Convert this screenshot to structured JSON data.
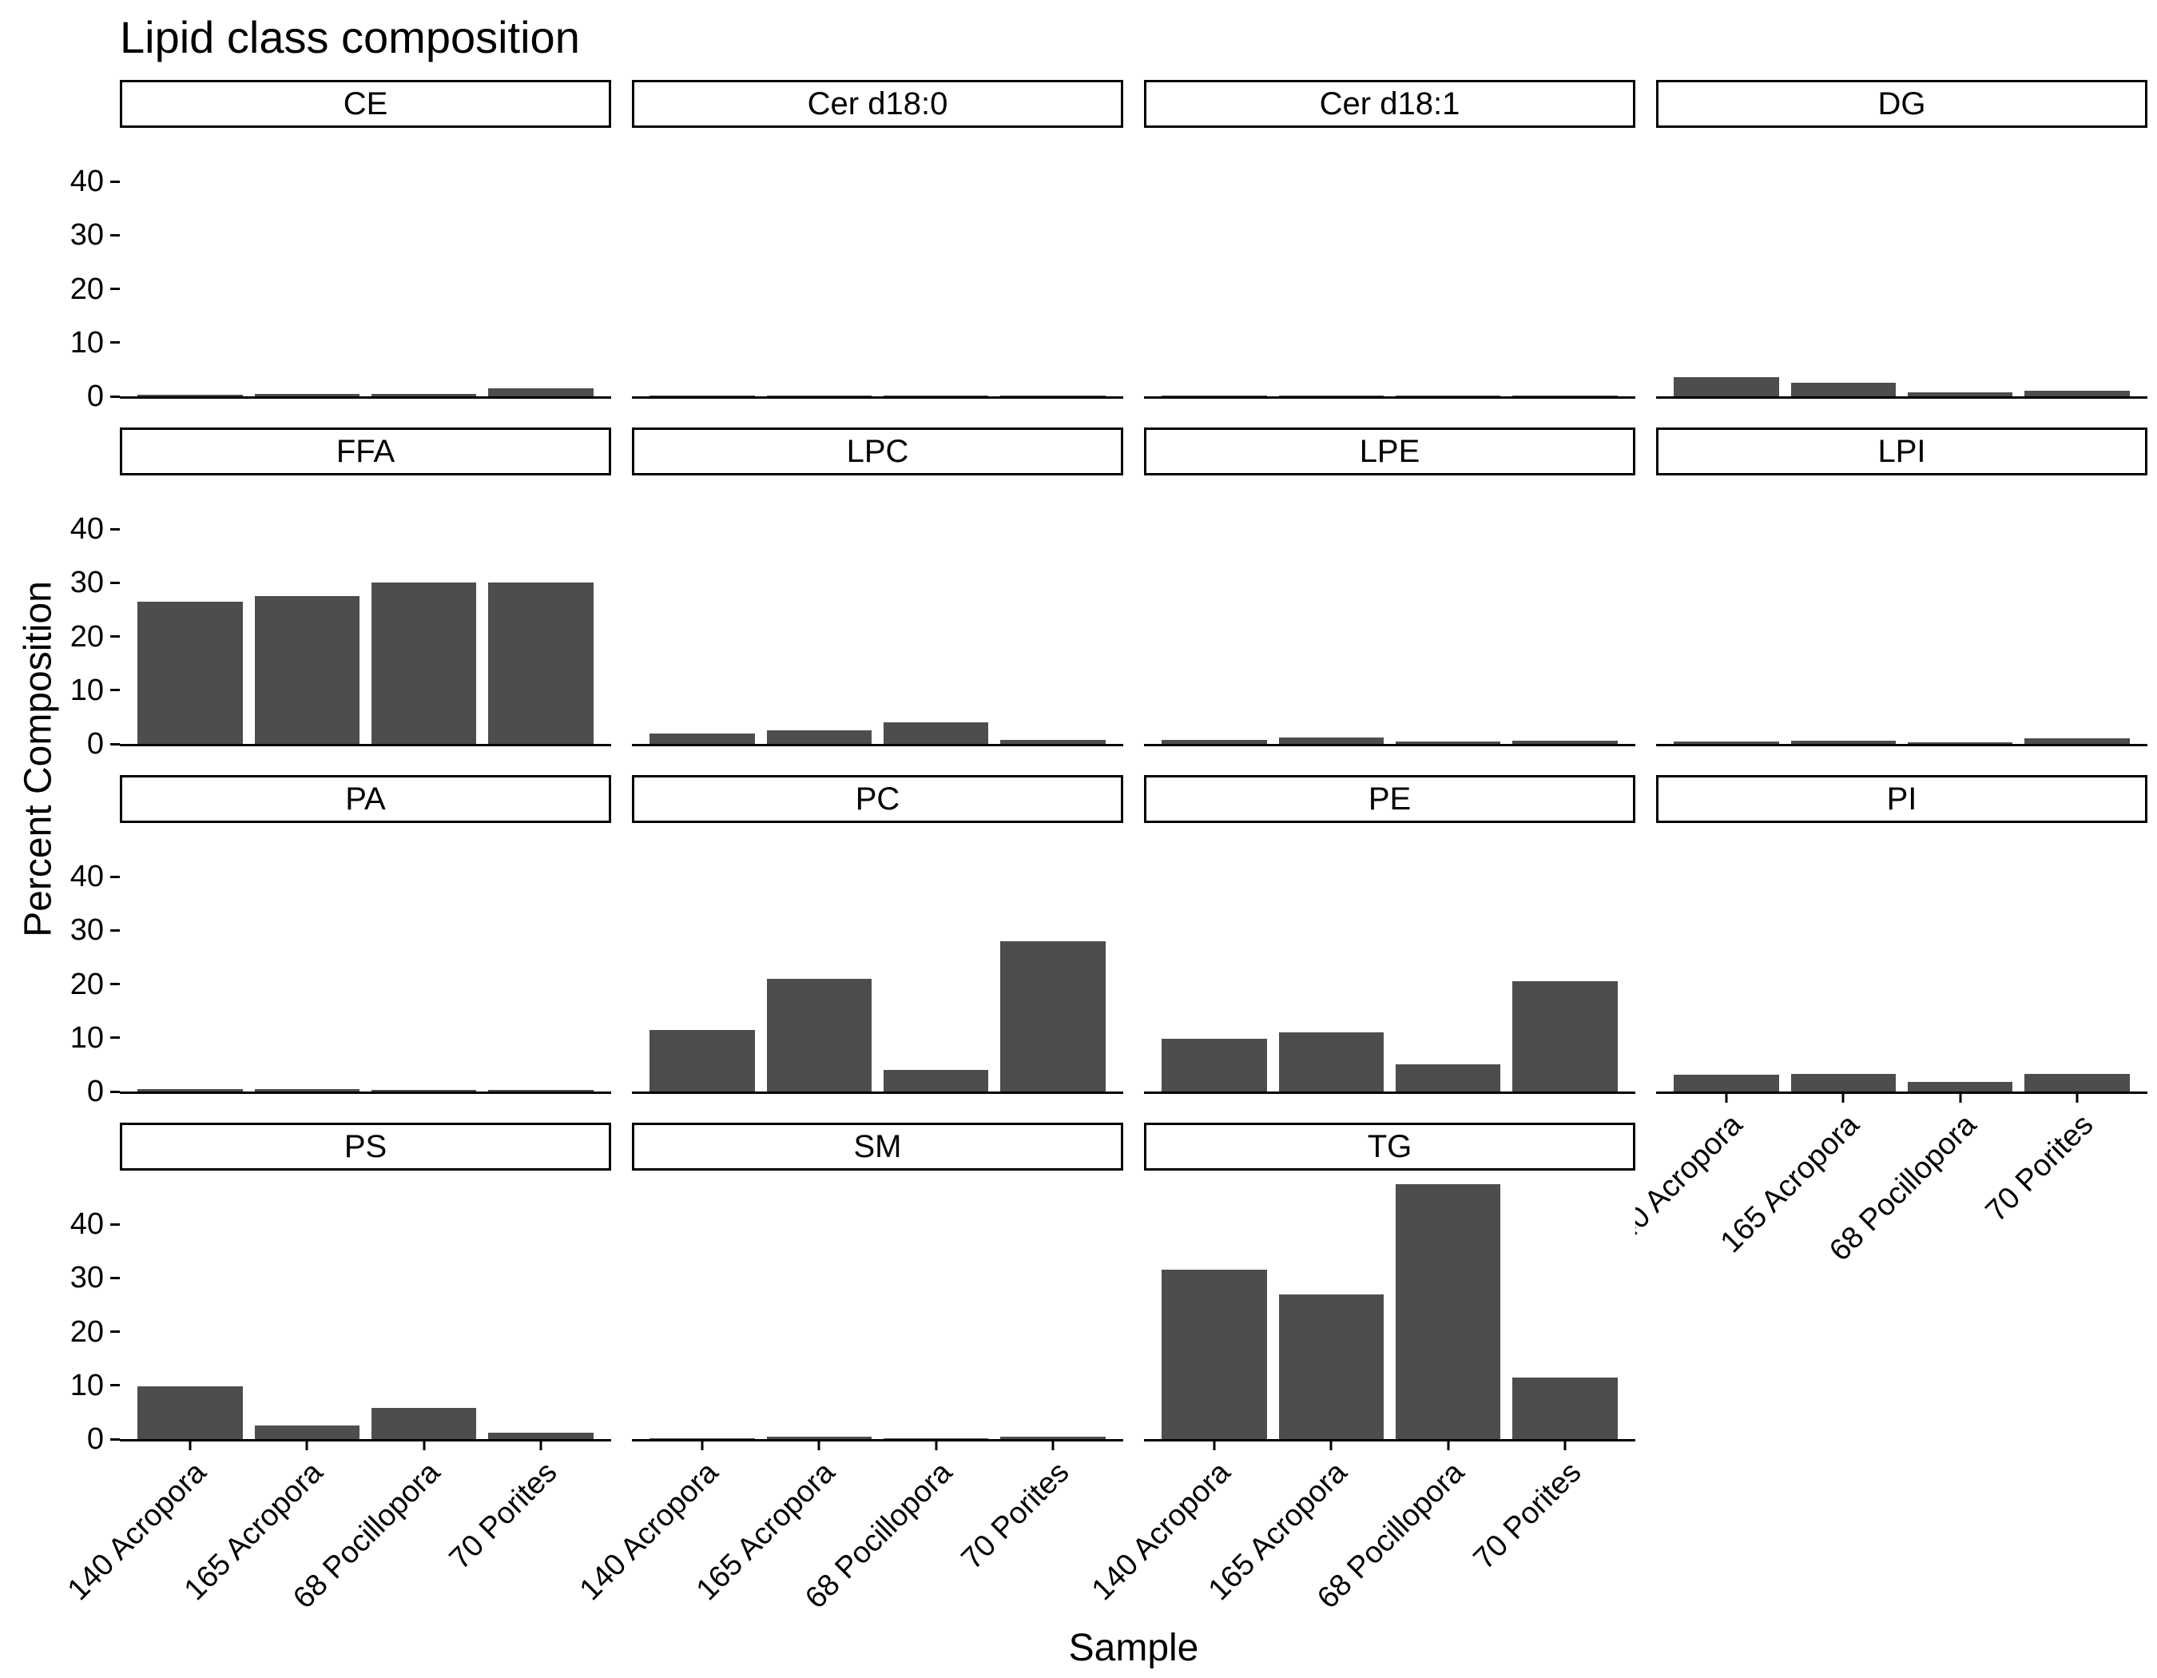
{
  "title": "Lipid class composition",
  "axes": {
    "y_label": "Percent Composition",
    "x_label": "Sample"
  },
  "colors": {
    "bar": "#4d4d4d",
    "axis": "#000000",
    "strip_border": "#000000",
    "text": "#000000",
    "background": "#ffffff"
  },
  "chart_data": {
    "type": "bar",
    "faceted": true,
    "facet_layout": {
      "nrows": 4,
      "ncols": 4,
      "empty_cells": [
        "row4-col4"
      ]
    },
    "title": "Lipid class composition",
    "xlabel": "Sample",
    "ylabel": "Percent Composition",
    "ylim": [
      0,
      50
    ],
    "yticks": [
      0,
      10,
      20,
      30,
      40
    ],
    "grid": false,
    "legend": "none",
    "bar_color": "#4d4d4d",
    "categories": [
      "140 Acropora",
      "165 Acropora",
      "68 Pocillopora",
      "70 Porites"
    ],
    "facets": [
      {
        "name": "CE",
        "values": [
          0.3,
          0.5,
          0.4,
          1.5
        ]
      },
      {
        "name": "Cer d18:0",
        "values": [
          0.1,
          0.15,
          0.1,
          0.15
        ]
      },
      {
        "name": "Cer d18:1",
        "values": [
          0.1,
          0.2,
          0.1,
          0.15
        ]
      },
      {
        "name": "DG",
        "values": [
          3.5,
          2.5,
          0.8,
          1.0
        ]
      },
      {
        "name": "FFA",
        "values": [
          26.5,
          27.5,
          30.0,
          30.0
        ]
      },
      {
        "name": "LPC",
        "values": [
          2.0,
          2.5,
          4.0,
          0.7
        ]
      },
      {
        "name": "LPE",
        "values": [
          0.8,
          1.2,
          0.4,
          0.6
        ]
      },
      {
        "name": "LPI",
        "values": [
          0.4,
          0.6,
          0.3,
          1.0
        ]
      },
      {
        "name": "PA",
        "values": [
          0.5,
          0.5,
          0.3,
          0.3
        ]
      },
      {
        "name": "PC",
        "values": [
          11.5,
          21.0,
          4.0,
          28.0
        ]
      },
      {
        "name": "PE",
        "values": [
          9.8,
          11.0,
          5.0,
          20.5
        ]
      },
      {
        "name": "PI",
        "values": [
          3.2,
          3.3,
          1.8,
          3.3
        ]
      },
      {
        "name": "PS",
        "values": [
          9.8,
          2.5,
          5.8,
          1.2
        ]
      },
      {
        "name": "SM",
        "values": [
          0.1,
          0.5,
          0.1,
          0.5
        ]
      },
      {
        "name": "TG",
        "values": [
          31.5,
          27.0,
          47.5,
          11.5
        ]
      }
    ]
  }
}
